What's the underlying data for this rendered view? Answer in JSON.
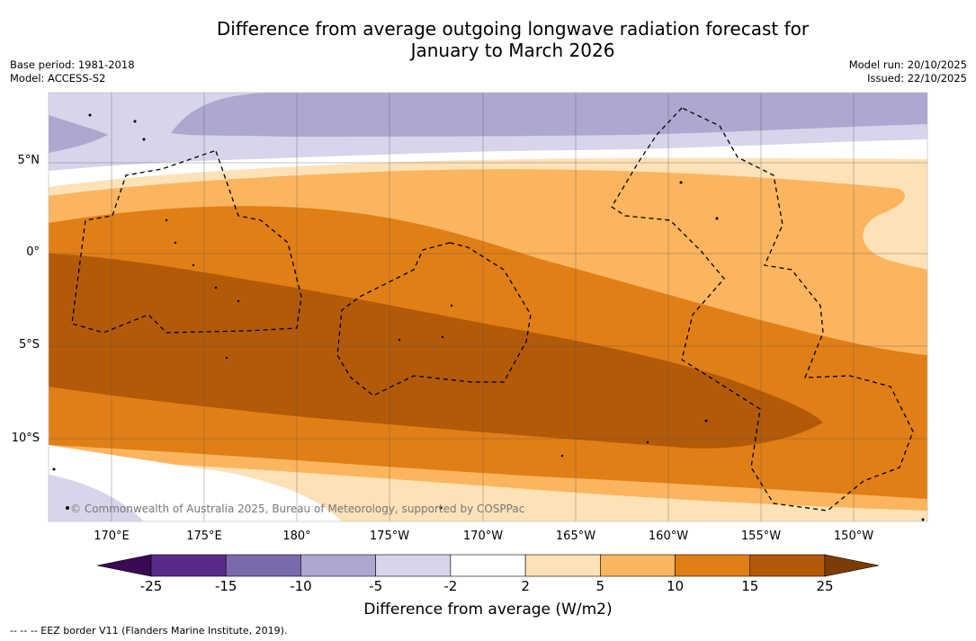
{
  "title_line1": "Difference from average outgoing longwave radiation forecast for",
  "title_line2": "January to March 2026",
  "meta_left": {
    "base_period": "Base period: 1981-2018",
    "model": "Model: ACCESS-S2"
  },
  "meta_right": {
    "model_run": "Model run: 20/10/2025",
    "issued": "Issued: 22/10/2025"
  },
  "map": {
    "lat_labels": [
      "5°N",
      "0°",
      "5°S",
      "10°S"
    ],
    "lon_labels": [
      "170°E",
      "175°E",
      "180°",
      "175°W",
      "170°W",
      "165°W",
      "160°W",
      "155°W",
      "150°W"
    ],
    "copyright": "© Commonwealth of Australia 2025, Bureau of Meteorology, supported by COSPPac"
  },
  "colorbar": {
    "ticks": [
      "-25",
      "-15",
      "-10",
      "-5",
      "-2",
      "2",
      "5",
      "10",
      "15",
      "25"
    ],
    "colors": [
      "#592a8a",
      "#7b6aab",
      "#aea7cf",
      "#d6d5ea",
      "#ffffff",
      "#fde1b7",
      "#fbb55f",
      "#e07f16",
      "#b35a08"
    ],
    "under_color": "#3a0a55",
    "over_color": "#7d3c06",
    "label": "Difference from average (W/m2)"
  },
  "footnote": "--  --  -- EEZ border V11 (Flanders Marine Institute, 2019)."
}
